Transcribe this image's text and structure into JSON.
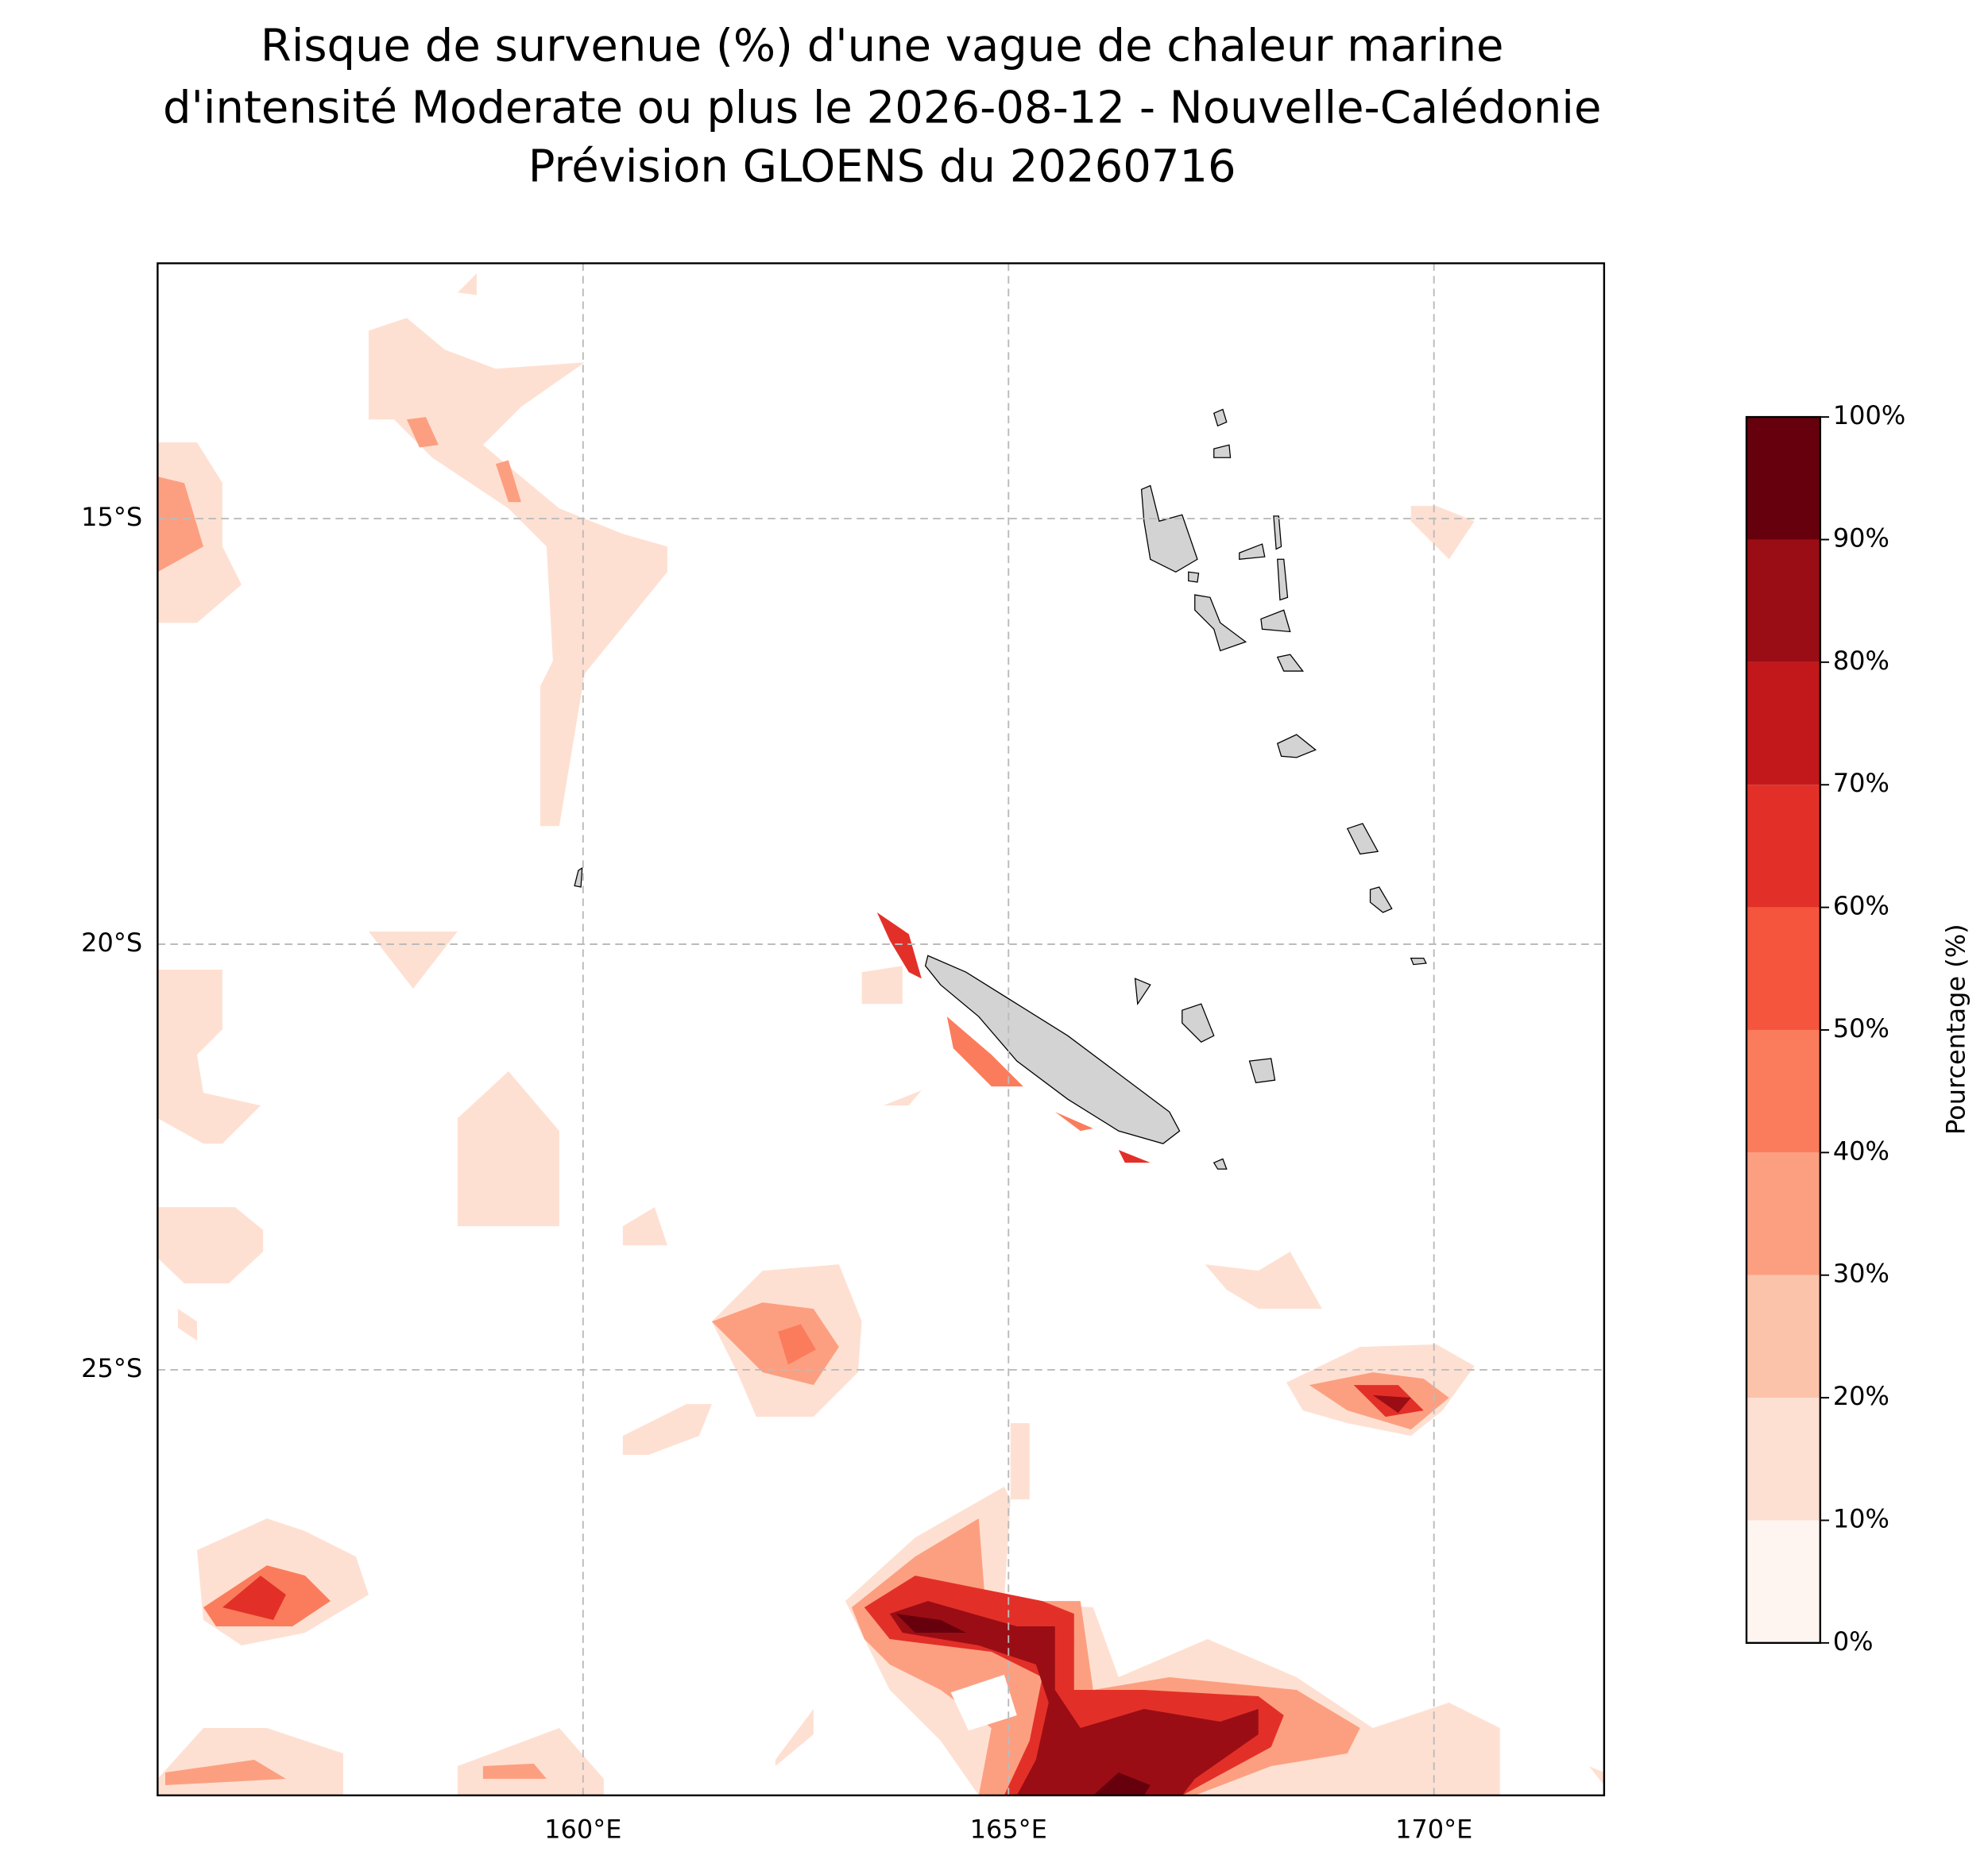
{
  "title": [
    "Risque de survenue (%) d'une vague de chaleur marine",
    "d'intensité Moderate ou plus le 2026-08-12 - Nouvelle-Calédonie",
    "Prévision GLOENS du 20260716"
  ],
  "map": {
    "xlim": [
      155,
      172
    ],
    "ylim": [
      -30,
      -12
    ],
    "grid": true,
    "xticks": [
      {
        "value": 160,
        "label": "160°E"
      },
      {
        "value": 165,
        "label": "165°E"
      },
      {
        "value": 170,
        "label": "170°E"
      }
    ],
    "yticks": [
      {
        "value": -15,
        "label": "15°S"
      },
      {
        "value": -20,
        "label": "20°S"
      },
      {
        "value": -25,
        "label": "25°S"
      }
    ]
  },
  "colorbar": {
    "label": "Pourcentage (%)",
    "ticks": [
      {
        "value": 0,
        "label": "0%"
      },
      {
        "value": 10,
        "label": "10%"
      },
      {
        "value": 20,
        "label": "20%"
      },
      {
        "value": 30,
        "label": "30%"
      },
      {
        "value": 40,
        "label": "40%"
      },
      {
        "value": 50,
        "label": "50%"
      },
      {
        "value": 60,
        "label": "60%"
      },
      {
        "value": 70,
        "label": "70%"
      },
      {
        "value": 80,
        "label": "80%"
      },
      {
        "value": 90,
        "label": "90%"
      },
      {
        "value": 100,
        "label": "100%"
      }
    ],
    "colors": [
      "#fff5f0",
      "#fee0d2",
      "#fcc3ab",
      "#fc9f81",
      "#fb7c5c",
      "#f5553d",
      "#e23028",
      "#c2181c",
      "#9b0d14",
      "#67000d"
    ]
  }
}
